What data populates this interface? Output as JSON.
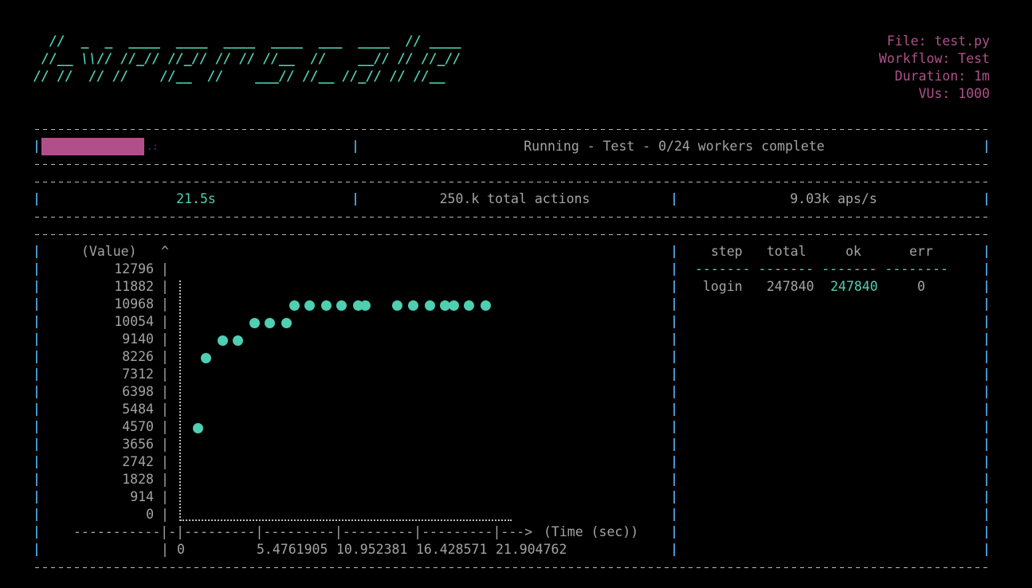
{
  "logo": {
    "lines": [
      "  //  _  _  ____  ____  ____  ____  ___  ____  // ____",
      " //__ \\\\// //_// //_// // // //__  //    __// // //_//",
      "// //  // //    //__  //    ___// //__ //_// // //__"
    ],
    "color": "#4fcfb2"
  },
  "info": {
    "file": "File: test.py",
    "workflow": "Workflow: Test",
    "duration": "Duration: 1m",
    "vus": "VUs: 1000",
    "color": "#b0508a"
  },
  "progress": {
    "bar_fill_fraction": 0.33,
    "spinner": ".:",
    "status": "Running - Test - 0/24 workers complete",
    "bar_color": "#b0508a"
  },
  "stats": {
    "elapsed": "21.5s",
    "total_actions": "250.k total actions",
    "rate": "9.03k aps/s"
  },
  "chart_data": {
    "type": "scatter",
    "ylabel": "(Value)",
    "xlabel": "(Time (sec))",
    "y_ticks": [
      "12796",
      "11882",
      "10968",
      "10054",
      "9140",
      "8226",
      "7312",
      "6398",
      "5484",
      "4570",
      "3656",
      "2742",
      "1828",
      "914",
      "0"
    ],
    "x_ticks": [
      "0",
      "5.4761905",
      "10.952381",
      "16.428571",
      "21.904762"
    ],
    "xlim": [
      0,
      21.904762
    ],
    "ylim": [
      0,
      12796
    ],
    "x_axis_line": "-----------|-|---------|---------|---------|---------|--->",
    "points": [
      {
        "x": 1.2,
        "y": 4570
      },
      {
        "x": 1.75,
        "y": 8226
      },
      {
        "x": 2.85,
        "y": 9140
      },
      {
        "x": 3.94,
        "y": 9140
      },
      {
        "x": 5.04,
        "y": 10054
      },
      {
        "x": 6.13,
        "y": 10054
      },
      {
        "x": 7.23,
        "y": 10054
      },
      {
        "x": 7.78,
        "y": 10968
      },
      {
        "x": 8.87,
        "y": 10968
      },
      {
        "x": 9.97,
        "y": 10968
      },
      {
        "x": 11.06,
        "y": 10968
      },
      {
        "x": 12.16,
        "y": 10968
      },
      {
        "x": 12.7,
        "y": 10968
      },
      {
        "x": 14.89,
        "y": 10968
      },
      {
        "x": 15.99,
        "y": 10968
      },
      {
        "x": 17.09,
        "y": 10968
      },
      {
        "x": 18.18,
        "y": 10968
      },
      {
        "x": 18.73,
        "y": 10968
      },
      {
        "x": 19.82,
        "y": 10968
      },
      {
        "x": 20.92,
        "y": 10968
      }
    ],
    "point_color": "#4fcfb2"
  },
  "table": {
    "headers": [
      "step",
      "total",
      "ok",
      "err"
    ],
    "separator": "------- ------- ------- --------",
    "rows": [
      {
        "step": "login",
        "total": "247840",
        "ok": "247840",
        "err": "0"
      }
    ]
  }
}
